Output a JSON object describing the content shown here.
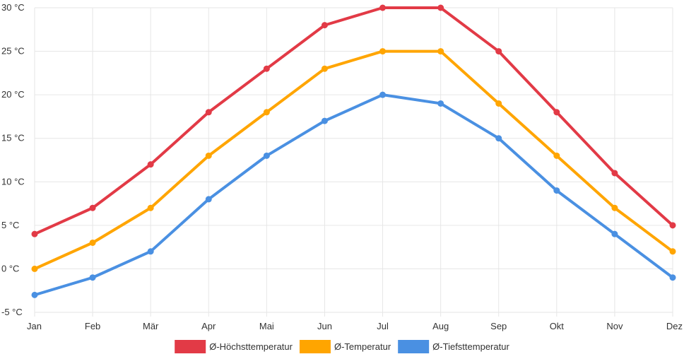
{
  "chart_data": {
    "type": "line",
    "categories": [
      "Jan",
      "Feb",
      "Mär",
      "Apr",
      "Mai",
      "Jun",
      "Jul",
      "Aug",
      "Sep",
      "Okt",
      "Nov",
      "Dez"
    ],
    "series": [
      {
        "name": "Ø-Höchsttemperatur",
        "color": "#e23a46",
        "values": [
          4,
          7,
          12,
          18,
          23,
          28,
          30,
          30,
          25,
          18,
          11,
          5
        ]
      },
      {
        "name": "Ø-Temperatur",
        "color": "#ffa500",
        "values": [
          0,
          3,
          7,
          13,
          18,
          23,
          25,
          25,
          19,
          13,
          7,
          2
        ]
      },
      {
        "name": "Ø-Tiefsttemperatur",
        "color": "#4a90e2",
        "values": [
          -3,
          -1,
          2,
          8,
          13,
          17,
          20,
          19,
          15,
          9,
          4,
          -1
        ]
      }
    ],
    "yticks": [
      "-5 °C",
      "0 °C",
      "5 °C",
      "10 °C",
      "15 °C",
      "20 °C",
      "25 °C",
      "30 °C"
    ],
    "ylim": [
      -5,
      30
    ],
    "grid": true,
    "legend": "bottom-center"
  }
}
